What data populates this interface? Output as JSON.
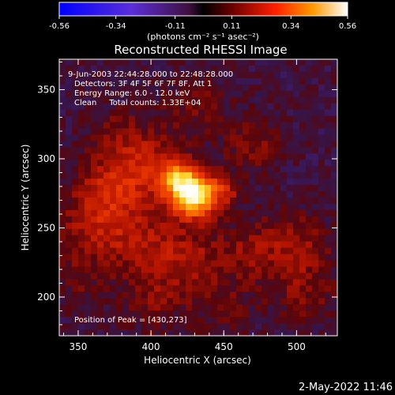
{
  "chart_data": {
    "type": "heatmap",
    "title": "Reconstructed RHESSI Image",
    "xlabel": "Heliocentric X (arcsec)",
    "ylabel": "Heliocentric Y (arcsec)",
    "xlim": [
      337,
      528
    ],
    "ylim": [
      172,
      372
    ],
    "xticks": [
      "350",
      "400",
      "450",
      "500"
    ],
    "yticks": [
      "200",
      "250",
      "300",
      "350"
    ],
    "colorbar": {
      "range": [
        -0.56,
        0.56
      ],
      "ticks": [
        "-0.56",
        "-0.34",
        "-0.11",
        "0.11",
        "0.34",
        "0.56"
      ],
      "unit_label": "(photons cm⁻² s⁻¹ asec⁻²)"
    },
    "annotations": [
      "9-Jun-2003 22:44:28.000 to 22:48:28.000",
      "Detectors: 3F 4F 5F 6F 7F 8F, Att 1",
      "Energy Range: 6.0 - 12.0 keV",
      "Clean     Total counts: 1.33E+04"
    ],
    "peak_label": "Position of Peak = [430,273]",
    "peak": {
      "x": 430,
      "y": 273,
      "value": 0.56
    },
    "sources": [
      {
        "x": 430,
        "y": 273,
        "sigma": 11,
        "amp": 0.62
      },
      {
        "x": 418,
        "y": 286,
        "sigma": 9,
        "amp": 0.35
      },
      {
        "x": 450,
        "y": 278,
        "sigma": 8,
        "amp": 0.18
      },
      {
        "x": 395,
        "y": 295,
        "sigma": 18,
        "amp": 0.22
      },
      {
        "x": 370,
        "y": 275,
        "sigma": 16,
        "amp": 0.2
      },
      {
        "x": 360,
        "y": 245,
        "sigma": 18,
        "amp": 0.16
      },
      {
        "x": 395,
        "y": 240,
        "sigma": 18,
        "amp": 0.14
      },
      {
        "x": 425,
        "y": 225,
        "sigma": 18,
        "amp": 0.16
      },
      {
        "x": 468,
        "y": 232,
        "sigma": 16,
        "amp": 0.12
      },
      {
        "x": 500,
        "y": 240,
        "sigma": 16,
        "amp": 0.14
      },
      {
        "x": 505,
        "y": 205,
        "sigma": 16,
        "amp": 0.12
      },
      {
        "x": 470,
        "y": 310,
        "sigma": 14,
        "amp": 0.12
      },
      {
        "x": 430,
        "y": 340,
        "sigma": 16,
        "amp": 0.1
      },
      {
        "x": 375,
        "y": 320,
        "sigma": 14,
        "amp": 0.08
      },
      {
        "x": 400,
        "y": 195,
        "sigma": 14,
        "amp": 0.1
      },
      {
        "x": 450,
        "y": 190,
        "sigma": 14,
        "amp": 0.08
      },
      {
        "x": 350,
        "y": 205,
        "sigma": 14,
        "amp": 0.06
      }
    ]
  },
  "footer": {
    "date_label": "2-May-2022 11:46"
  }
}
